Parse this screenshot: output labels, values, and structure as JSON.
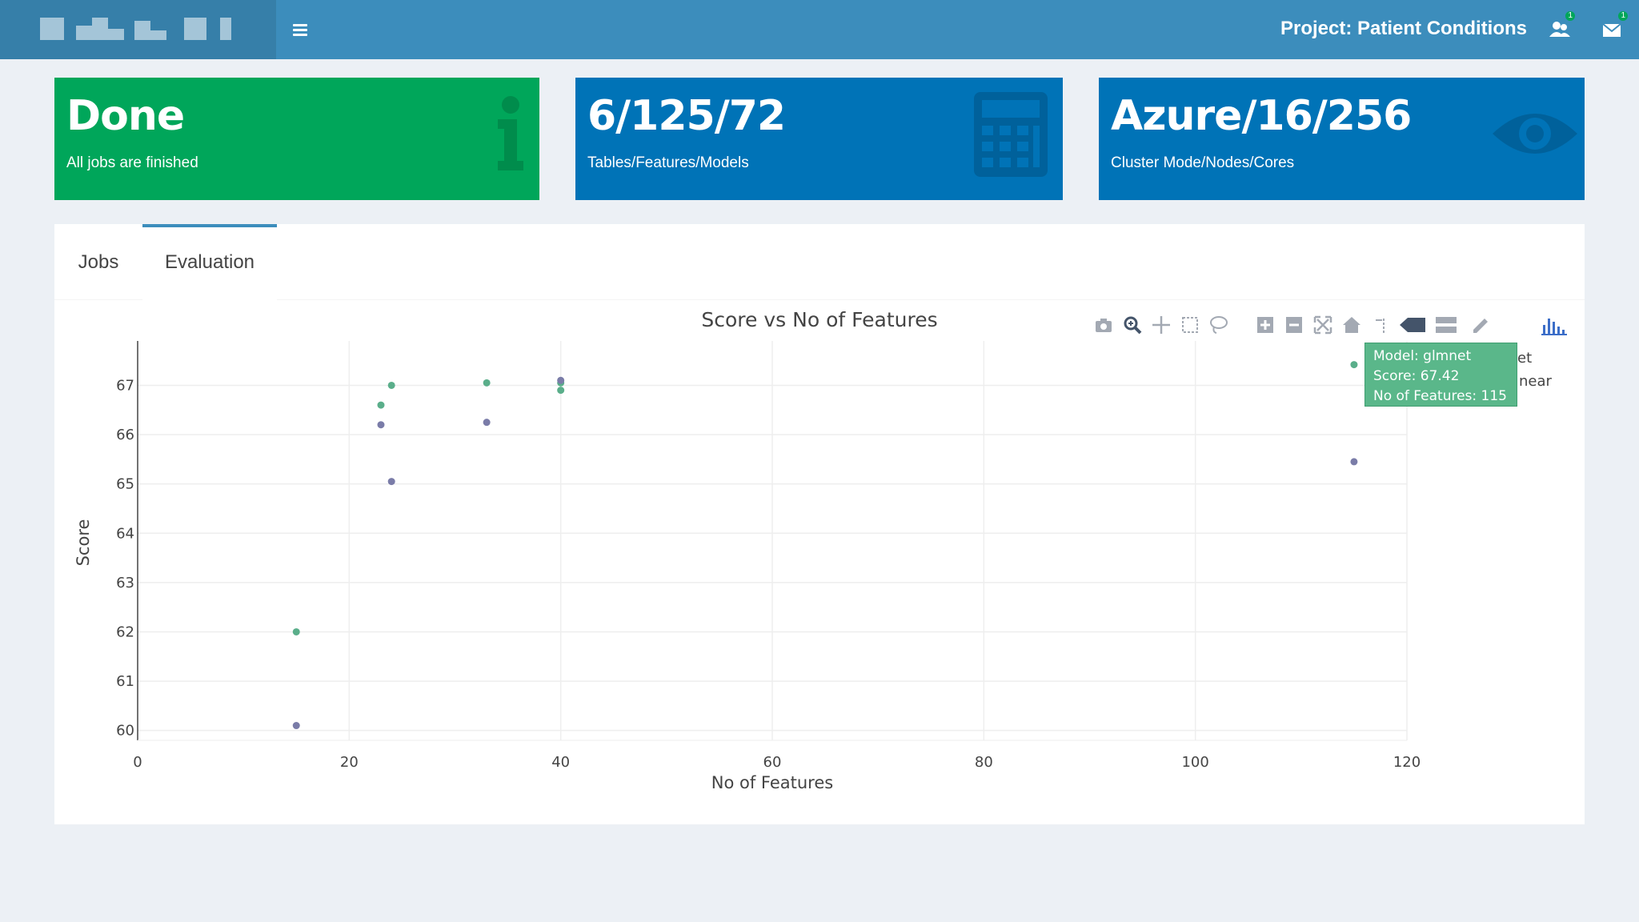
{
  "header": {
    "project_title": "Project: Patient Conditions",
    "notif_users_count": "1",
    "notif_msgs_count": "1"
  },
  "info_boxes": [
    {
      "value": "Done",
      "label": "All jobs are finished",
      "color": "#00a65a",
      "icon": "info-icon"
    },
    {
      "value": "6/125/72",
      "label": "Tables/Features/Models",
      "color": "#0073b7",
      "icon": "calculator-icon"
    },
    {
      "value": "Azure/16/256",
      "label": "Cluster Mode/Nodes/Cores",
      "color": "#0073b7",
      "icon": "eye-icon"
    }
  ],
  "tabs": [
    {
      "label": "Jobs",
      "active": false
    },
    {
      "label": "Evaluation",
      "active": true
    }
  ],
  "tooltip": {
    "model": "Model:  glmnet",
    "score": "Score:  67.42",
    "features": "No of Features:  115"
  },
  "legend_fragments": [
    "et",
    "near"
  ],
  "chart_data": {
    "type": "scatter",
    "title": "Score vs No of Features",
    "xlabel": "No of Features",
    "ylabel": "Score",
    "xlim": [
      0,
      120
    ],
    "ylim": [
      59.8,
      67.9
    ],
    "xticks": [
      0,
      20,
      40,
      60,
      80,
      100,
      120
    ],
    "yticks": [
      60,
      61,
      62,
      63,
      64,
      65,
      66,
      67
    ],
    "grid": true,
    "series": [
      {
        "color": "#5aae8a",
        "points": [
          [
            15,
            62.0
          ],
          [
            23,
            66.6
          ],
          [
            24,
            67.0
          ],
          [
            33,
            67.05
          ],
          [
            40,
            67.05
          ],
          [
            40,
            66.9
          ],
          [
            115,
            67.42
          ]
        ]
      },
      {
        "color": "#7a7ca8",
        "points": [
          [
            15,
            60.1
          ],
          [
            23,
            66.2
          ],
          [
            24,
            65.05
          ],
          [
            33,
            66.25
          ],
          [
            40,
            67.1
          ],
          [
            115,
            65.45
          ]
        ]
      }
    ]
  }
}
